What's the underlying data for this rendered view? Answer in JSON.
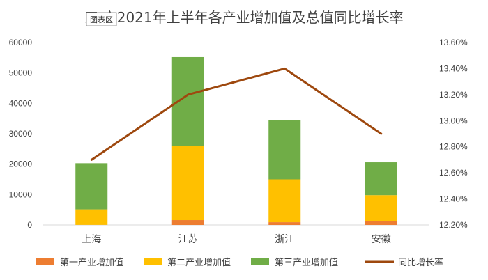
{
  "chart_data": {
    "type": "bar",
    "stacked": true,
    "title": "三 市2021年上半年各产业增加值及总值同比增长率",
    "chart_area_tag": "图表区",
    "categories": [
      "上海",
      "江苏",
      "浙江",
      "安徽"
    ],
    "series": [
      {
        "name": "第一产业增加值",
        "type": "bar",
        "axis": "left",
        "color": "#ED7D31",
        "values": [
          30,
          1600,
          900,
          1200
        ]
      },
      {
        "name": "第二产业增加值",
        "type": "bar",
        "axis": "left",
        "color": "#FFC000",
        "values": [
          5100,
          24300,
          14100,
          8600
        ]
      },
      {
        "name": "第三产业增加值",
        "type": "bar",
        "axis": "left",
        "color": "#70AD47",
        "values": [
          15170,
          29300,
          19400,
          10800
        ]
      },
      {
        "name": "同比增长率",
        "type": "line",
        "axis": "right",
        "color": "#9E480E",
        "values": [
          12.7,
          13.2,
          13.4,
          12.9
        ]
      }
    ],
    "y_left": {
      "min": 0,
      "max": 60000,
      "step": 10000,
      "ticks": [
        "0",
        "10000",
        "20000",
        "30000",
        "40000",
        "50000",
        "60000"
      ]
    },
    "y_right": {
      "min": 12.2,
      "max": 13.6,
      "step": 0.2,
      "ticks": [
        "12.20%",
        "12.40%",
        "12.60%",
        "12.80%",
        "13.00%",
        "13.20%",
        "13.40%",
        "13.60%"
      ]
    },
    "grid": false,
    "legend": "bottom"
  }
}
